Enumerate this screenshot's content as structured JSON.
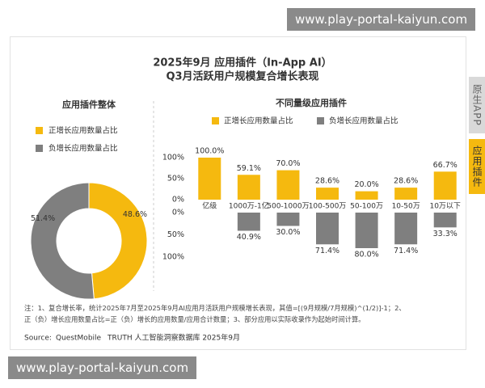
{
  "header": {
    "title_line1": "2025年9月 应用插件（In-App AI）",
    "title_line2": "Q3月活跃用户规模复合增长表现"
  },
  "watermark": {
    "top": "www.play-portal-kaiyun.com",
    "bottom": "www.play-portal-kaiyun.com"
  },
  "tabs": [
    "原生APP",
    "应用插件"
  ],
  "chart_data": [
    {
      "type": "donut",
      "title": "应用插件整体",
      "categories": [
        "正增长应用数量占比",
        "负增长应用数量占比"
      ],
      "values": [
        48.6,
        51.4
      ],
      "value_labels": [
        "48.6%",
        "51.4%"
      ],
      "colors": [
        "#f5b90f",
        "#7f7f7f"
      ]
    },
    {
      "type": "diverging_bar",
      "title": "不同量级应用插件",
      "categories": [
        "亿级",
        "1000万-1亿",
        "500-1000万",
        "100-500万",
        "50-100万",
        "10-50万",
        "10万以下"
      ],
      "series": [
        {
          "name": "正增长应用数量占比",
          "color": "#f5b90f",
          "values": [
            100.0,
            59.1,
            70.0,
            28.6,
            20.0,
            28.6,
            66.7
          ],
          "value_labels": [
            "100.0%",
            "59.1%",
            "70.0%",
            "28.6%",
            "20.0%",
            "28.6%",
            "66.7%"
          ]
        },
        {
          "name": "负增长应用数量占比",
          "color": "#7f7f7f",
          "axis": "y2",
          "values": [
            null,
            40.9,
            30.0,
            71.4,
            80.0,
            71.4,
            33.3
          ],
          "value_labels": [
            null,
            "40.9%",
            "30.0%",
            "71.4%",
            "80.0%",
            "71.4%",
            "33.3%"
          ]
        }
      ],
      "ylim": [
        0,
        100
      ],
      "yticks": [
        {
          "value": 0,
          "label": "0%"
        },
        {
          "value": 50,
          "label": "50%"
        },
        {
          "value": 100,
          "label": "100%"
        }
      ],
      "y2lim": [
        0,
        100
      ],
      "y2ticks": [
        {
          "value": 0,
          "label": "0%"
        },
        {
          "value": 50,
          "label": "50%"
        },
        {
          "value": 100,
          "label": "100%"
        }
      ]
    }
  ],
  "notes": {
    "line1": "注：1、复合增长率，统计2025年7月至2025年9月AI应用月活跃用户规模增长表现，其值=[(9月规模/7月规模)^(1/2)]-1；2、",
    "line2": "正（负）增长应用数量占比=正（负）增长的应用数量/应用合计数量；3、部分应用以实际收录作为起始时间计算。"
  },
  "source": {
    "prefix": "Source:",
    "brand": "QuestMobile",
    "text": "TRUTH 人工智能洞察数据库 2025年9月"
  }
}
